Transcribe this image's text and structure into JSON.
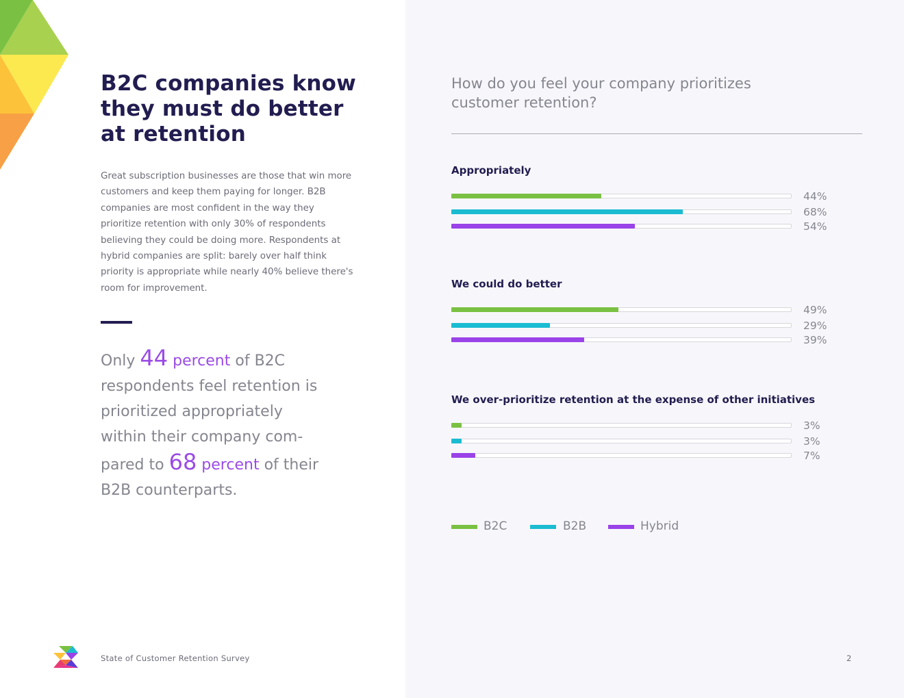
{
  "left": {
    "headline": "B2C companies know they must do better at retention",
    "body": "Great subscription businesses are those that win more customers and keep them paying for longer. B2B companies are most confident in the way they prioritize retention with only 30% of respondents believing they could be doing more. Respondents at hybrid companies are split: barely over half think priority is appropriate while nearly 40% believe there's room for improvement.",
    "pullquote": {
      "part1": "Only ",
      "num1": "44",
      "accent1": " percent",
      "part2": " of B2C respondents feel retention is prioritized appropriately within their company com-pared to ",
      "num2": "68",
      "accent2": " percent",
      "part3": " of their B2B counterparts."
    }
  },
  "footer": {
    "title": "State of Customer Retention Survey",
    "page_number": "2"
  },
  "colors": {
    "B2C": "#7ac143",
    "B2B": "#1bbcd1",
    "Hybrid": "#9a43e8",
    "heading": "#221d50",
    "muted": "#85858f",
    "accent": "#9a4be6"
  },
  "chart_data": {
    "type": "bar",
    "orientation": "horizontal",
    "title": "How do you feel your company prioritizes customer retention?",
    "categories": [
      "Appropriately",
      "We could do better",
      "We over-prioritize retention at the expense of other initiatives"
    ],
    "series": [
      {
        "name": "B2C",
        "values": [
          44,
          49,
          3
        ]
      },
      {
        "name": "B2B",
        "values": [
          68,
          29,
          3
        ]
      },
      {
        "name": "Hybrid",
        "values": [
          54,
          39,
          7
        ]
      }
    ],
    "value_labels": [
      [
        "44%",
        "68%",
        "54%"
      ],
      [
        "49%",
        "29%",
        "39%"
      ],
      [
        "3%",
        "3%",
        "7%"
      ]
    ],
    "xlim": [
      0,
      100
    ],
    "unit": "%",
    "legend_position": "bottom-left",
    "grid": false
  }
}
